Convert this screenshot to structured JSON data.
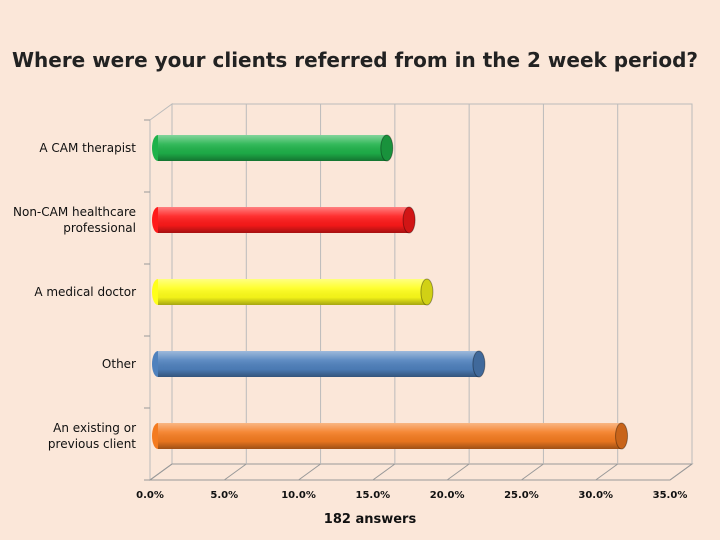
{
  "chart_data": {
    "type": "bar",
    "orientation": "horizontal",
    "title": "Where were your clients referred from in the 2 week period?",
    "xlabel": "182 answers",
    "ylabel": "",
    "categories": [
      [
        "A CAM therapist"
      ],
      [
        "Non-CAM healthcare",
        "professional"
      ],
      [
        "A medical doctor"
      ],
      [
        "Other"
      ],
      [
        "An existing or",
        "previous client"
      ]
    ],
    "values": [
      15.4,
      16.9,
      18.1,
      21.6,
      31.2
    ],
    "bar_colors": [
      "#1fb24a",
      "#ff1a1a",
      "#ffff1a",
      "#4f81bd",
      "#f47b20"
    ],
    "xlim": [
      0,
      35
    ],
    "xticks": [
      "0.0%",
      "5.0%",
      "10.0%",
      "15.0%",
      "20.0%",
      "25.0%",
      "30.0%",
      "35.0%"
    ],
    "grid": true,
    "legend": "none"
  }
}
